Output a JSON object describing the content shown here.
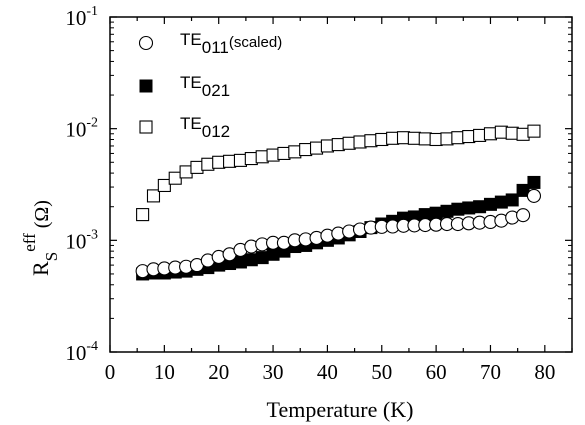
{
  "chart_data": {
    "type": "scatter",
    "xlabel": "Temperature (K)",
    "ylabel": {
      "main": "R",
      "sub": "S",
      "sup": "eff",
      "unit": "(Ω)"
    },
    "x_scale": "linear",
    "y_scale": "log",
    "xlim": [
      0,
      85
    ],
    "ylim": [
      0.0001,
      0.1
    ],
    "x_ticks": [
      0,
      10,
      20,
      30,
      40,
      50,
      60,
      70,
      80
    ],
    "x_tick_labels": [
      "0",
      "10",
      "20",
      "30",
      "40",
      "50",
      "60",
      "70",
      "80"
    ],
    "y_ticks": [
      0.0001,
      0.001,
      0.01,
      0.1
    ],
    "y_tick_labels": [
      {
        "base": "10",
        "exp": "-4"
      },
      {
        "base": "10",
        "exp": "-3"
      },
      {
        "base": "10",
        "exp": "-2"
      },
      {
        "base": "10",
        "exp": "-1"
      }
    ],
    "grid": false,
    "legend_position": "top-left",
    "series": [
      {
        "name": "TE011(scaled)",
        "legend": {
          "main": "TE",
          "sub": "011",
          "suffix": "(scaled)"
        },
        "marker": "open-circle",
        "x": [
          6,
          8,
          10,
          12,
          14,
          16,
          18,
          20,
          22,
          24,
          26,
          28,
          30,
          32,
          34,
          36,
          38,
          40,
          42,
          44,
          46,
          48,
          50,
          52,
          54,
          56,
          58,
          60,
          62,
          64,
          66,
          68,
          70,
          72,
          74,
          76,
          78
        ],
        "y": [
          0.00053,
          0.00055,
          0.00056,
          0.00057,
          0.00058,
          0.0006,
          0.00066,
          0.00071,
          0.00075,
          0.00082,
          0.00088,
          0.00092,
          0.00095,
          0.00095,
          0.001,
          0.00102,
          0.00105,
          0.0011,
          0.00115,
          0.0012,
          0.00125,
          0.0013,
          0.00132,
          0.00133,
          0.00135,
          0.00136,
          0.00137,
          0.00138,
          0.0014,
          0.0014,
          0.00142,
          0.00144,
          0.00146,
          0.0015,
          0.0016,
          0.00168,
          0.0025
        ]
      },
      {
        "name": "TE021",
        "legend": {
          "main": "TE",
          "sub": "021",
          "suffix": ""
        },
        "marker": "filled-square",
        "x": [
          6,
          8,
          10,
          12,
          14,
          16,
          18,
          20,
          22,
          24,
          26,
          28,
          30,
          32,
          34,
          36,
          38,
          40,
          42,
          44,
          46,
          48,
          50,
          52,
          54,
          56,
          58,
          60,
          62,
          64,
          66,
          68,
          70,
          72,
          74,
          76,
          78
        ],
        "y": [
          0.0005,
          0.00051,
          0.00051,
          0.00052,
          0.00053,
          0.00055,
          0.00057,
          0.0006,
          0.00062,
          0.00064,
          0.00067,
          0.0007,
          0.00075,
          0.0008,
          0.00088,
          0.0009,
          0.00095,
          0.001,
          0.00105,
          0.00112,
          0.0012,
          0.0013,
          0.0014,
          0.00148,
          0.00158,
          0.00162,
          0.0017,
          0.00175,
          0.00182,
          0.0019,
          0.00195,
          0.002,
          0.0021,
          0.0022,
          0.0023,
          0.0028,
          0.0033
        ]
      },
      {
        "name": "TE012",
        "legend": {
          "main": "TE",
          "sub": "012",
          "suffix": ""
        },
        "marker": "open-square",
        "x": [
          6,
          8,
          10,
          12,
          14,
          16,
          18,
          20,
          22,
          24,
          26,
          28,
          30,
          32,
          34,
          36,
          38,
          40,
          42,
          44,
          46,
          48,
          50,
          52,
          54,
          56,
          58,
          60,
          62,
          64,
          66,
          68,
          70,
          72,
          74,
          76,
          78
        ],
        "y": [
          0.0017,
          0.0025,
          0.0031,
          0.0036,
          0.0041,
          0.0045,
          0.0048,
          0.005,
          0.0051,
          0.0052,
          0.0054,
          0.0056,
          0.0058,
          0.006,
          0.0062,
          0.0065,
          0.0067,
          0.007,
          0.0072,
          0.0074,
          0.0076,
          0.0078,
          0.008,
          0.0082,
          0.0083,
          0.0082,
          0.0081,
          0.008,
          0.0081,
          0.0083,
          0.0085,
          0.0087,
          0.009,
          0.0093,
          0.0091,
          0.0089,
          0.0095
        ]
      }
    ]
  }
}
